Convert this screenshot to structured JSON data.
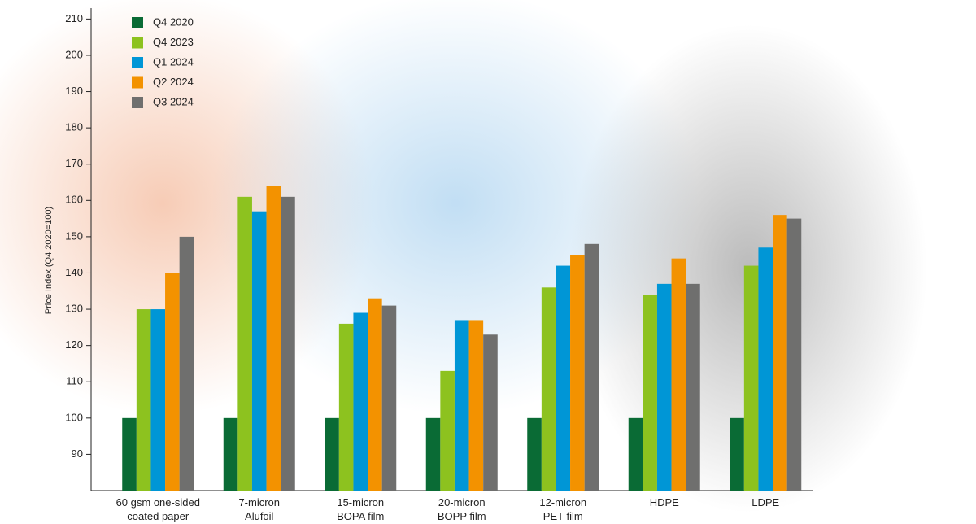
{
  "chart_data": {
    "type": "bar",
    "y_label": "Price Index (Q4 2020=100)",
    "categories": [
      "60 gsm one-sided\ncoated paper",
      "7-micron\nAlufoil",
      "15-micron\nBOPA film",
      "20-micron\nBOPP film",
      "12-micron\nPET film",
      "HDPE",
      "LDPE"
    ],
    "series": [
      {
        "name": "Q4 2020",
        "color": "#0a6b35",
        "values": [
          100,
          100,
          100,
          100,
          100,
          100,
          100
        ]
      },
      {
        "name": "Q4 2023",
        "color": "#8dc21f",
        "values": [
          130,
          161,
          126,
          113,
          136,
          134,
          142
        ]
      },
      {
        "name": "Q1 2024",
        "color": "#0096d6",
        "values": [
          130,
          157,
          129,
          127,
          142,
          137,
          147
        ]
      },
      {
        "name": "Q2 2024",
        "color": "#f39200",
        "values": [
          140,
          164,
          133,
          127,
          145,
          144,
          156
        ]
      },
      {
        "name": "Q3 2024",
        "color": "#6f6f6e",
        "values": [
          150,
          161,
          131,
          123,
          148,
          137,
          155
        ]
      }
    ],
    "ylim": [
      80,
      213
    ],
    "yticks": [
      90,
      100,
      110,
      120,
      130,
      140,
      150,
      160,
      170,
      180,
      190,
      200,
      210
    ],
    "legend": "top-left"
  }
}
